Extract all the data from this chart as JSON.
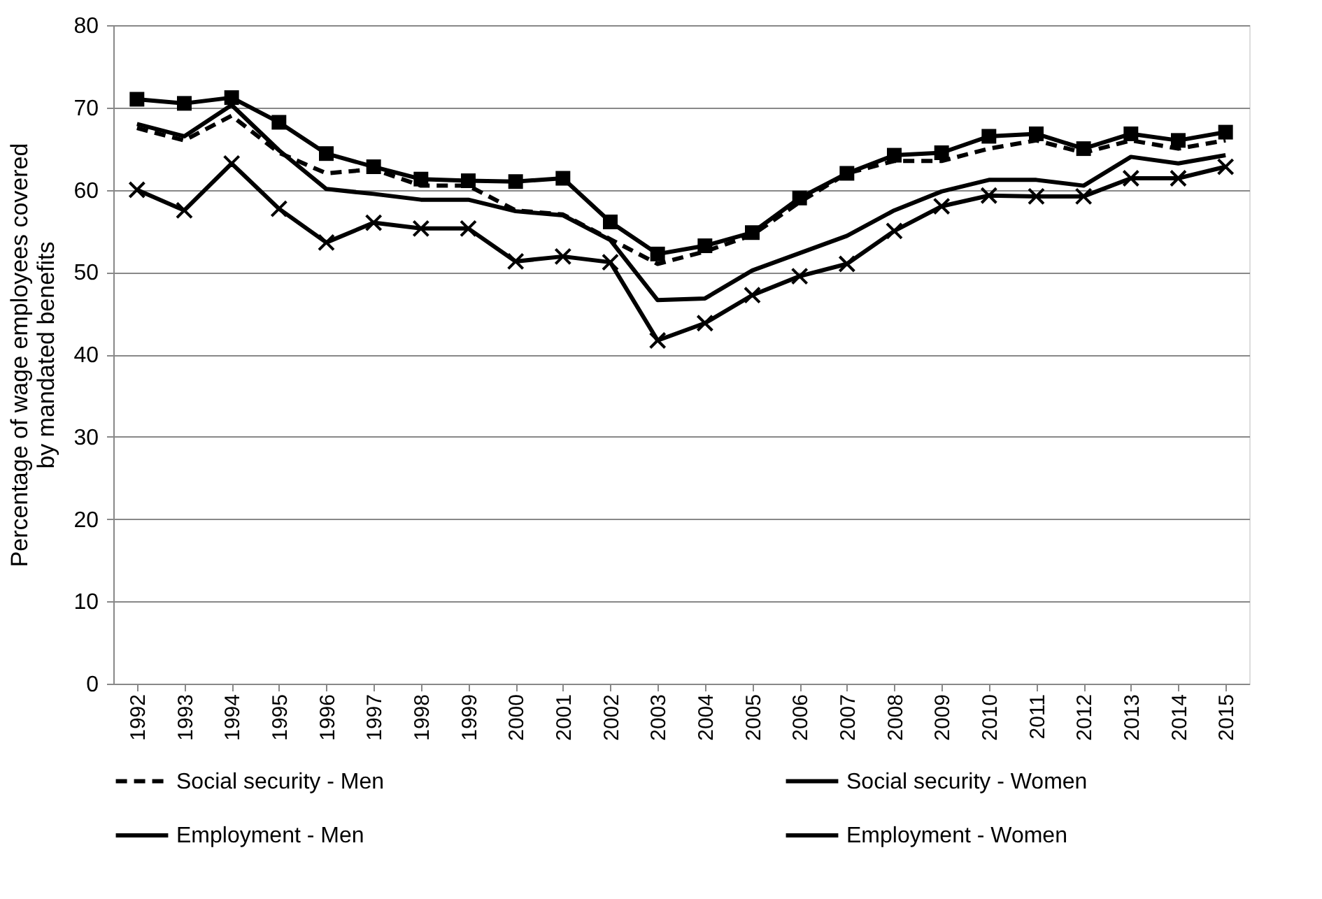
{
  "chart_data": {
    "type": "line",
    "ylabel": "Percentage of wage employees covered by mandated benefits",
    "categories": [
      "1992",
      "1993",
      "1994",
      "1995",
      "1996",
      "1997",
      "1998",
      "1999",
      "2000",
      "2001",
      "2002",
      "2003",
      "2004",
      "2005",
      "2006",
      "2007",
      "2008",
      "2009",
      "2010",
      "2011",
      "2012",
      "2013",
      "2014",
      "2015"
    ],
    "series": [
      {
        "name": "Social security - Men",
        "color": "#000000",
        "line_style": "dashed",
        "marker": "none",
        "values": [
          67.5,
          66,
          69,
          64.5,
          62,
          62.5,
          60.5,
          60.5,
          57.5,
          57,
          54,
          51,
          52.5,
          54.5,
          58.5,
          62,
          63.5,
          63.5,
          65,
          66,
          64.5,
          66,
          65,
          66
        ]
      },
      {
        "name": "Social security - Women",
        "color": "#000000",
        "line_style": "solid",
        "marker": "cross",
        "values": [
          60,
          57.5,
          63.2,
          57.7,
          53.6,
          56,
          55.3,
          55.3,
          51.3,
          51.9,
          51.2,
          41.7,
          43.8,
          47.2,
          49.5,
          51,
          55,
          58,
          59.3,
          59.2,
          59.2,
          61.4,
          61.4,
          62.8
        ]
      },
      {
        "name": "Employment - Men",
        "color": "#000000",
        "line_style": "solid",
        "marker": "square",
        "values": [
          71,
          70.5,
          71.2,
          68.2,
          64.4,
          62.8,
          61.3,
          61.1,
          61,
          61.4,
          56.1,
          52.2,
          53.2,
          54.8,
          59,
          62,
          64.2,
          64.5,
          66.5,
          66.8,
          65,
          66.8,
          66,
          67
        ]
      },
      {
        "name": "Employment - Women",
        "color": "#000000",
        "line_style": "solid",
        "marker": "none",
        "values": [
          68,
          66.5,
          70.3,
          64.8,
          60.1,
          59.5,
          58.8,
          58.8,
          57.4,
          56.9,
          53.9,
          46.6,
          46.8,
          50.2,
          52.3,
          54.4,
          57.5,
          59.8,
          61.2,
          61.2,
          60.5,
          64,
          63.2,
          64.2
        ]
      }
    ],
    "ylim": [
      0,
      80
    ],
    "yticks": [
      0,
      10,
      20,
      30,
      40,
      50,
      60,
      70,
      80
    ],
    "grid": "y",
    "legend": "bottom"
  }
}
